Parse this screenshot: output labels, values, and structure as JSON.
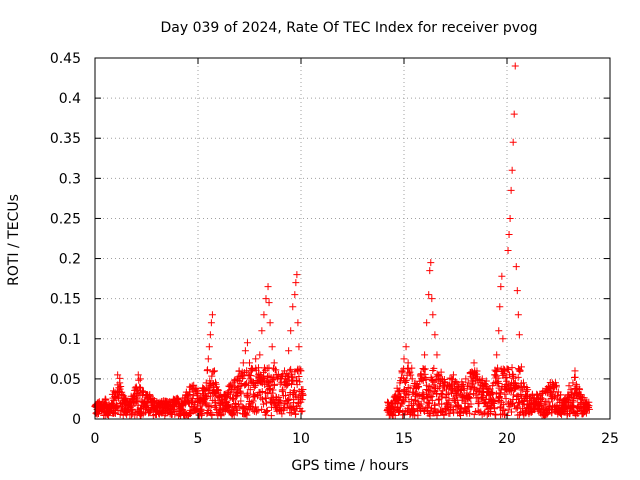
{
  "chart_data": {
    "type": "scatter",
    "title": "Day 039 of 2024, Rate Of TEC Index for receiver pvog",
    "xlabel": "GPS time / hours",
    "ylabel": "ROTI / TECUs",
    "xlim": [
      0,
      25
    ],
    "ylim": [
      0,
      0.45
    ],
    "x_ticks": [
      0,
      5,
      10,
      15,
      20,
      25
    ],
    "x_tick_labels": [
      "0",
      "5",
      "10",
      "15",
      "20",
      "25"
    ],
    "y_ticks": [
      0,
      0.05,
      0.1,
      0.15,
      0.2,
      0.25,
      0.3,
      0.35,
      0.4,
      0.45
    ],
    "y_tick_labels": [
      "0",
      "0.05",
      "0.1",
      "0.15",
      "0.2",
      "0.25",
      "0.3",
      "0.35",
      "0.4",
      "0.45"
    ],
    "grid": true,
    "marker": "+",
    "marker_color": "#ff0000",
    "series": [
      {
        "name": "ROTI",
        "points": [
          [
            0.1,
            0.012
          ],
          [
            0.3,
            0.018
          ],
          [
            0.5,
            0.025
          ],
          [
            0.6,
            0.015
          ],
          [
            0.8,
            0.02
          ],
          [
            0.9,
            0.035
          ],
          [
            1.0,
            0.028
          ],
          [
            1.1,
            0.055
          ],
          [
            1.2,
            0.045
          ],
          [
            1.3,
            0.03
          ],
          [
            1.5,
            0.025
          ],
          [
            1.7,
            0.02
          ],
          [
            1.9,
            0.03
          ],
          [
            2.0,
            0.04
          ],
          [
            2.1,
            0.055
          ],
          [
            2.2,
            0.05
          ],
          [
            2.3,
            0.035
          ],
          [
            2.5,
            0.03
          ],
          [
            2.7,
            0.025
          ],
          [
            3.0,
            0.02
          ],
          [
            3.2,
            0.018
          ],
          [
            3.4,
            0.022
          ],
          [
            3.6,
            0.015
          ],
          [
            3.8,
            0.02
          ],
          [
            4.0,
            0.025
          ],
          [
            4.2,
            0.02
          ],
          [
            4.4,
            0.03
          ],
          [
            4.6,
            0.04
          ],
          [
            4.8,
            0.038
          ],
          [
            5.0,
            0.035
          ],
          [
            5.2,
            0.025
          ],
          [
            5.4,
            0.045
          ],
          [
            5.5,
            0.075
          ],
          [
            5.55,
            0.09
          ],
          [
            5.6,
            0.105
          ],
          [
            5.65,
            0.12
          ],
          [
            5.7,
            0.13
          ],
          [
            5.8,
            0.06
          ],
          [
            5.9,
            0.04
          ],
          [
            6.1,
            0.03
          ],
          [
            6.3,
            0.025
          ],
          [
            6.5,
            0.035
          ],
          [
            6.7,
            0.045
          ],
          [
            6.9,
            0.05
          ],
          [
            7.0,
            0.06
          ],
          [
            7.2,
            0.07
          ],
          [
            7.3,
            0.085
          ],
          [
            7.4,
            0.095
          ],
          [
            7.5,
            0.07
          ],
          [
            7.6,
            0.06
          ],
          [
            7.8,
            0.075
          ],
          [
            8.0,
            0.08
          ],
          [
            8.1,
            0.11
          ],
          [
            8.2,
            0.13
          ],
          [
            8.3,
            0.15
          ],
          [
            8.4,
            0.165
          ],
          [
            8.45,
            0.145
          ],
          [
            8.5,
            0.12
          ],
          [
            8.6,
            0.09
          ],
          [
            8.7,
            0.07
          ],
          [
            8.8,
            0.055
          ],
          [
            9.0,
            0.05
          ],
          [
            9.2,
            0.06
          ],
          [
            9.4,
            0.085
          ],
          [
            9.5,
            0.11
          ],
          [
            9.6,
            0.14
          ],
          [
            9.7,
            0.155
          ],
          [
            9.75,
            0.17
          ],
          [
            9.8,
            0.18
          ],
          [
            9.85,
            0.12
          ],
          [
            9.9,
            0.09
          ],
          [
            10.0,
            0.06
          ],
          [
            10.1,
            0.03
          ],
          [
            14.2,
            0.012
          ],
          [
            14.4,
            0.02
          ],
          [
            14.6,
            0.03
          ],
          [
            14.8,
            0.045
          ],
          [
            14.9,
            0.06
          ],
          [
            15.0,
            0.075
          ],
          [
            15.1,
            0.09
          ],
          [
            15.2,
            0.07
          ],
          [
            15.4,
            0.05
          ],
          [
            15.6,
            0.04
          ],
          [
            15.8,
            0.055
          ],
          [
            16.0,
            0.08
          ],
          [
            16.1,
            0.12
          ],
          [
            16.2,
            0.155
          ],
          [
            16.25,
            0.185
          ],
          [
            16.3,
            0.195
          ],
          [
            16.35,
            0.15
          ],
          [
            16.4,
            0.13
          ],
          [
            16.5,
            0.105
          ],
          [
            16.6,
            0.08
          ],
          [
            16.8,
            0.05
          ],
          [
            17.0,
            0.045
          ],
          [
            17.2,
            0.04
          ],
          [
            17.4,
            0.055
          ],
          [
            17.6,
            0.035
          ],
          [
            17.8,
            0.04
          ],
          [
            18.0,
            0.05
          ],
          [
            18.2,
            0.04
          ],
          [
            18.4,
            0.07
          ],
          [
            18.6,
            0.045
          ],
          [
            18.8,
            0.05
          ],
          [
            19.0,
            0.04
          ],
          [
            19.2,
            0.03
          ],
          [
            19.4,
            0.055
          ],
          [
            19.5,
            0.08
          ],
          [
            19.6,
            0.11
          ],
          [
            19.65,
            0.14
          ],
          [
            19.7,
            0.165
          ],
          [
            19.75,
            0.178
          ],
          [
            19.8,
            0.1
          ],
          [
            19.9,
            0.06
          ],
          [
            20.0,
            0.04
          ],
          [
            20.05,
            0.21
          ],
          [
            20.1,
            0.23
          ],
          [
            20.15,
            0.25
          ],
          [
            20.2,
            0.285
          ],
          [
            20.25,
            0.31
          ],
          [
            20.3,
            0.345
          ],
          [
            20.35,
            0.38
          ],
          [
            20.4,
            0.44
          ],
          [
            20.45,
            0.19
          ],
          [
            20.5,
            0.16
          ],
          [
            20.55,
            0.13
          ],
          [
            20.6,
            0.105
          ],
          [
            20.7,
            0.065
          ],
          [
            20.8,
            0.045
          ],
          [
            21.0,
            0.03
          ],
          [
            21.3,
            0.025
          ],
          [
            21.6,
            0.03
          ],
          [
            21.9,
            0.035
          ],
          [
            22.0,
            0.04
          ],
          [
            22.2,
            0.045
          ],
          [
            22.4,
            0.04
          ],
          [
            22.6,
            0.03
          ],
          [
            22.8,
            0.025
          ],
          [
            23.0,
            0.03
          ],
          [
            23.2,
            0.045
          ],
          [
            23.3,
            0.06
          ],
          [
            23.4,
            0.04
          ],
          [
            23.6,
            0.03
          ],
          [
            23.8,
            0.02
          ],
          [
            24.0,
            0.012
          ]
        ]
      }
    ],
    "dense_band_segments": [
      {
        "x_start": 0.0,
        "x_end": 10.1
      },
      {
        "x_start": 14.2,
        "x_end": 24.0
      }
    ]
  }
}
